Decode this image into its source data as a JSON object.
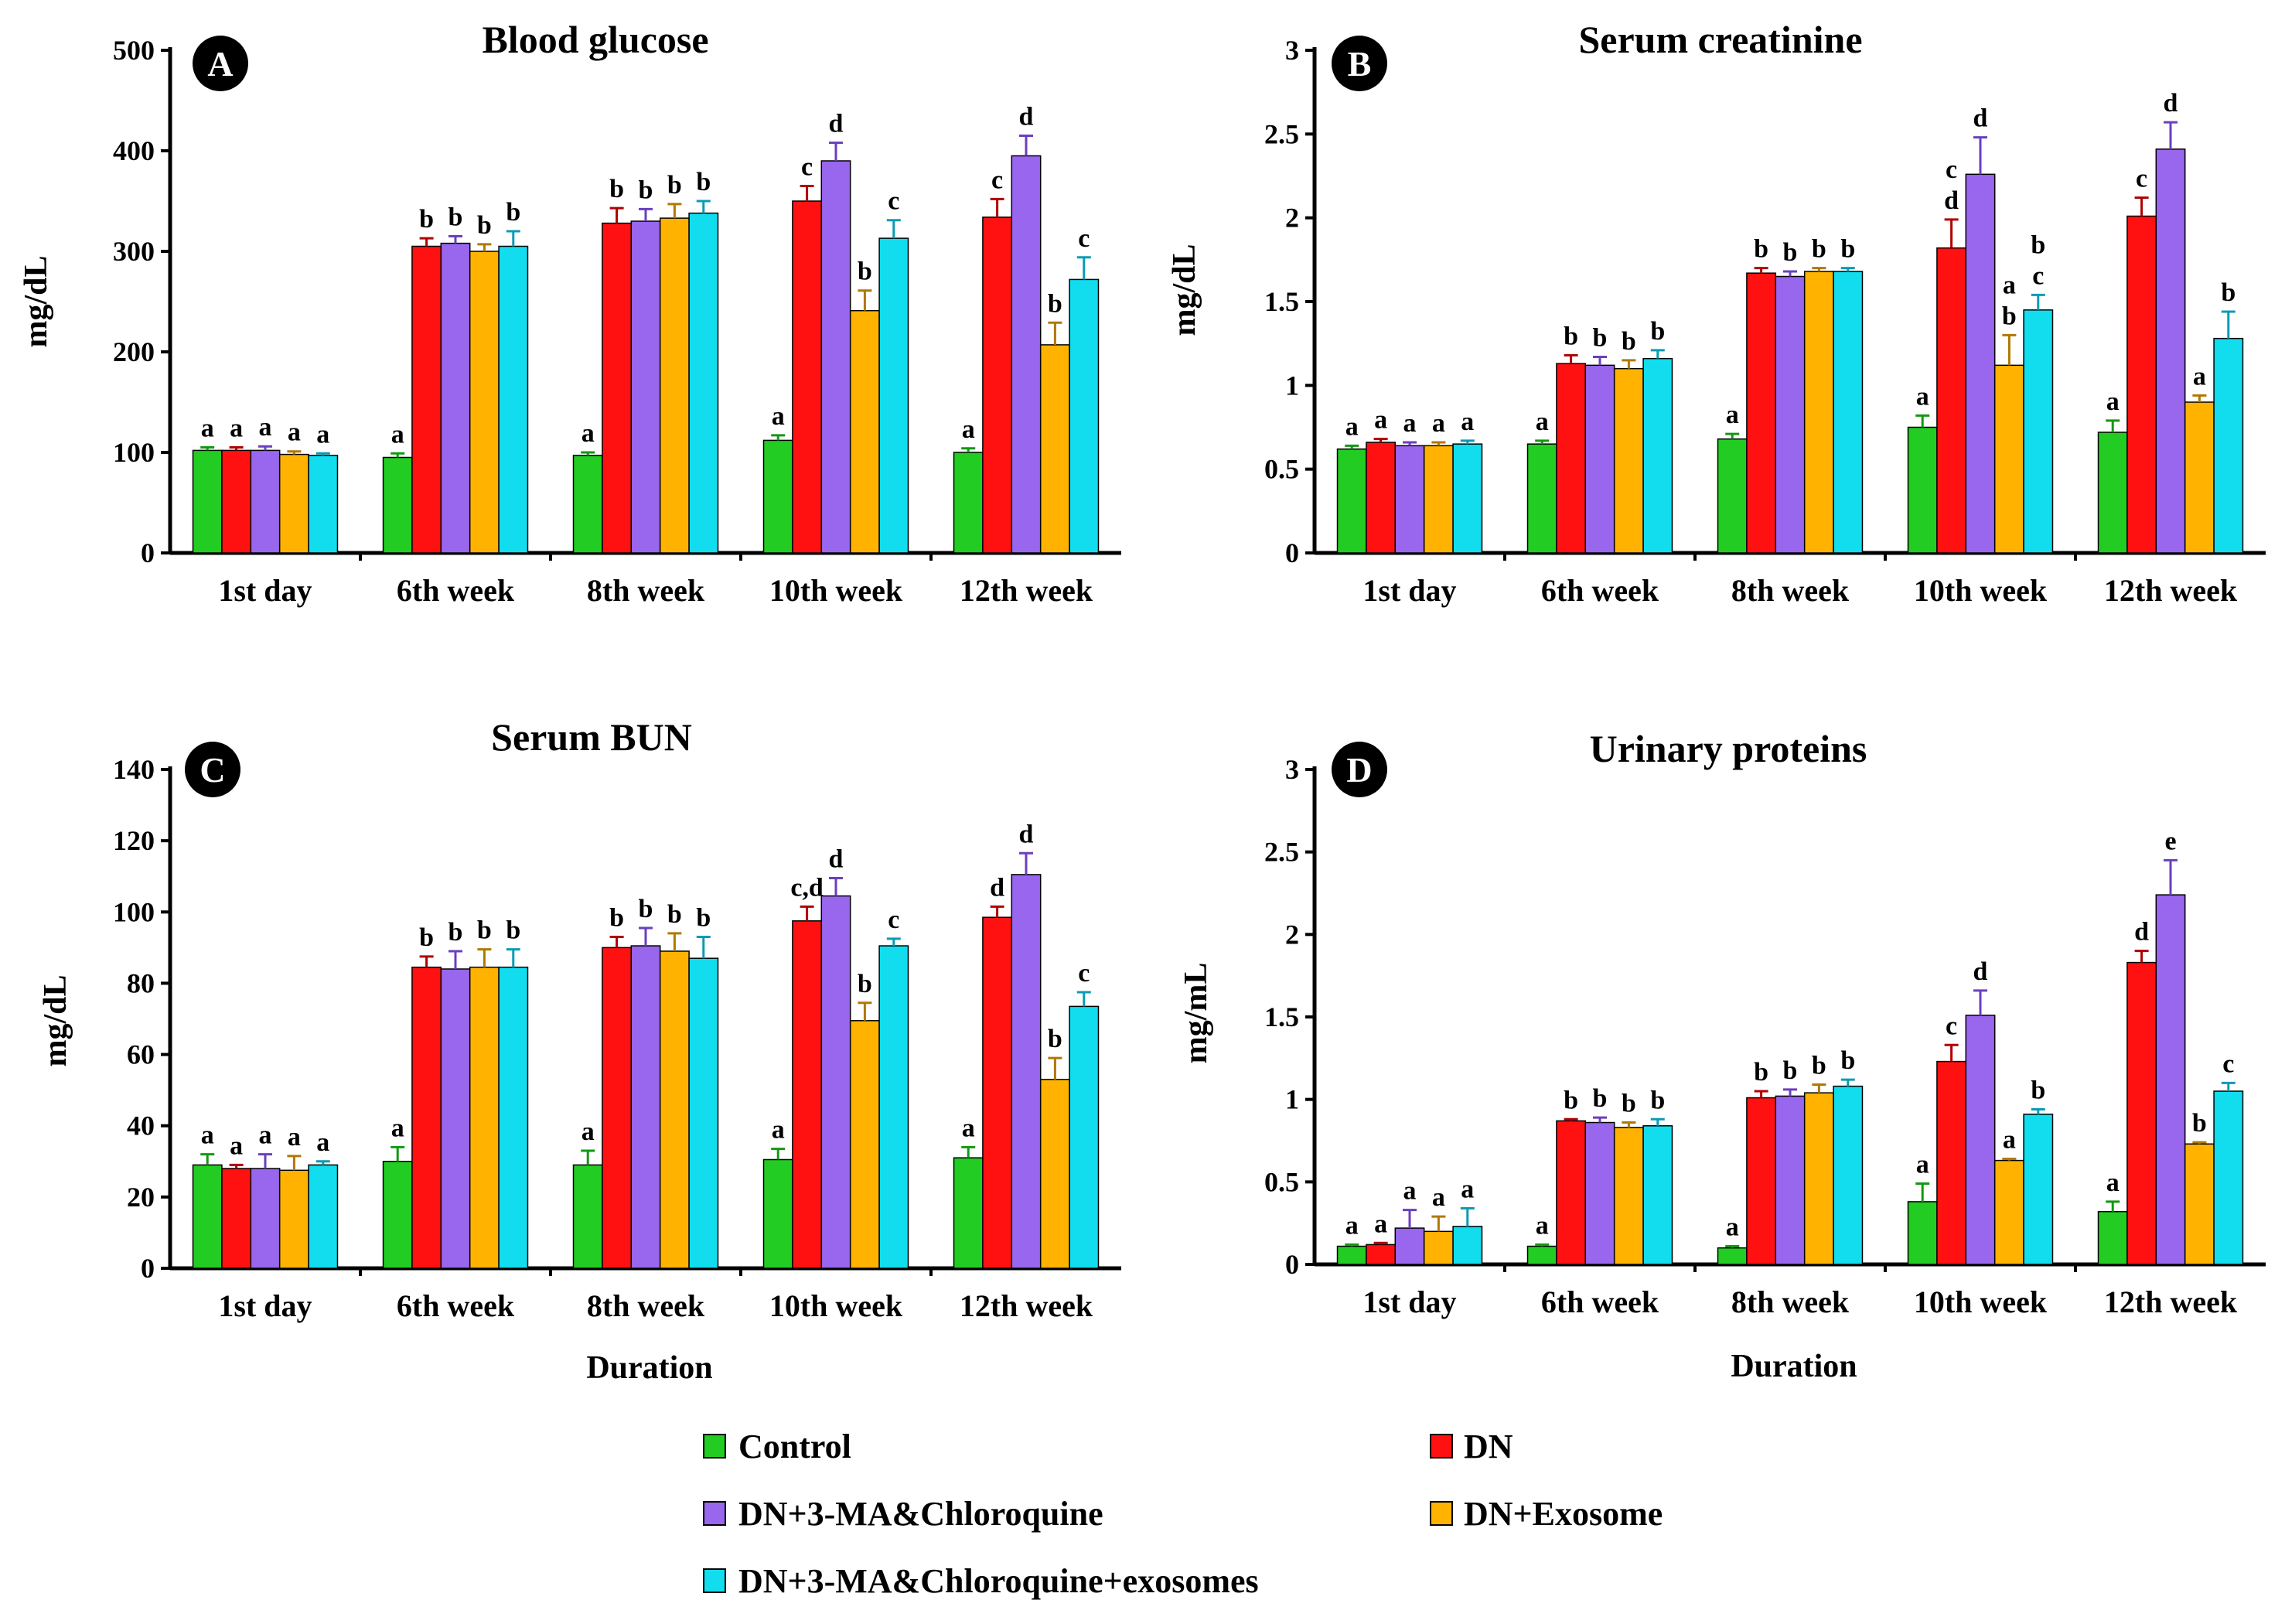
{
  "legend": [
    {
      "name": "Control",
      "color": "#22cc22"
    },
    {
      "name": "DN",
      "color": "#ff1111"
    },
    {
      "name": "DN+3-MA&Chloroquine",
      "color": "#9966ee"
    },
    {
      "name": "DN+Exosome",
      "color": "#ffb300"
    },
    {
      "name": "DN+3-MA&Chloroquine+exosomes",
      "color": "#11ddee"
    }
  ],
  "chart_data": [
    {
      "type": "bar",
      "panel": "A",
      "title": "Blood glucose",
      "ylabel": "mg/dL",
      "xlabel": "",
      "ylim": [
        0,
        500
      ],
      "yticks": [
        "0",
        "100",
        "200",
        "300",
        "400",
        "500"
      ],
      "categories": [
        "1st day",
        "6th week",
        "8th week",
        "10th week",
        "12th week"
      ],
      "series": [
        {
          "name": "Control",
          "values": [
            102,
            95,
            97,
            112,
            100
          ],
          "errors": [
            3,
            4,
            3,
            5,
            4
          ],
          "labels": [
            "a",
            "a",
            "a",
            "a",
            "a"
          ]
        },
        {
          "name": "DN",
          "values": [
            102,
            305,
            328,
            350,
            334
          ],
          "errors": [
            3,
            8,
            15,
            15,
            18
          ],
          "labels": [
            "a",
            "b",
            "b",
            "c",
            "c"
          ]
        },
        {
          "name": "DN+3-MA&Chloroquine",
          "values": [
            102,
            308,
            330,
            390,
            395
          ],
          "errors": [
            4,
            7,
            12,
            18,
            20
          ],
          "labels": [
            "a",
            "b",
            "b",
            "d",
            "d"
          ]
        },
        {
          "name": "DN+Exosome",
          "values": [
            98,
            300,
            333,
            241,
            207
          ],
          "errors": [
            3,
            7,
            14,
            20,
            22
          ],
          "labels": [
            "a",
            "b",
            "b",
            "b",
            "b"
          ]
        },
        {
          "name": "DN+3-MA&Chloroquine+exosomes",
          "values": [
            97,
            305,
            338,
            313,
            272
          ],
          "errors": [
            2,
            15,
            12,
            18,
            22
          ],
          "labels": [
            "a",
            "b",
            "b",
            "c",
            "c"
          ]
        }
      ]
    },
    {
      "type": "bar",
      "panel": "B",
      "title": "Serum creatinine",
      "ylabel": "mg/dL",
      "xlabel": "",
      "ylim": [
        0,
        3
      ],
      "yticks": [
        "0",
        "0.5",
        "1",
        "1.5",
        "2",
        "2.5",
        "3"
      ],
      "categories": [
        "1st day",
        "6th week",
        "8th week",
        "10th week",
        "12th week"
      ],
      "series": [
        {
          "name": "Control",
          "values": [
            0.62,
            0.65,
            0.68,
            0.75,
            0.72
          ],
          "errors": [
            0.02,
            0.02,
            0.03,
            0.07,
            0.07
          ],
          "labels": [
            "a",
            "a",
            "a",
            "a",
            "a"
          ]
        },
        {
          "name": "DN",
          "values": [
            0.66,
            1.13,
            1.67,
            1.82,
            2.01
          ],
          "errors": [
            0.02,
            0.05,
            0.03,
            0.17,
            0.11
          ],
          "labels": [
            "a",
            "b",
            "b",
            "c\nd",
            "c"
          ]
        },
        {
          "name": "DN+3-MA&Chloroquine",
          "values": [
            0.64,
            1.12,
            1.65,
            2.26,
            2.41
          ],
          "errors": [
            0.02,
            0.05,
            0.03,
            0.22,
            0.16
          ],
          "labels": [
            "a",
            "b",
            "b",
            "d",
            "d"
          ]
        },
        {
          "name": "DN+Exosome",
          "values": [
            0.64,
            1.1,
            1.68,
            1.12,
            0.9
          ],
          "errors": [
            0.02,
            0.05,
            0.02,
            0.18,
            0.04
          ],
          "labels": [
            "a",
            "b",
            "b",
            "a\nb",
            "a"
          ]
        },
        {
          "name": "DN+3-MA&Chloroquine+exosomes",
          "values": [
            0.65,
            1.16,
            1.68,
            1.45,
            1.28
          ],
          "errors": [
            0.02,
            0.05,
            0.02,
            0.09,
            0.16
          ],
          "labels": [
            "a",
            "b",
            "b",
            "b\nc",
            "b"
          ]
        }
      ]
    },
    {
      "type": "bar",
      "panel": "C",
      "title": "Serum BUN",
      "ylabel": "mg/dL",
      "xlabel": "Duration",
      "ylim": [
        0,
        140
      ],
      "yticks": [
        "0",
        "20",
        "40",
        "60",
        "80",
        "100",
        "120",
        "140"
      ],
      "categories": [
        "1st day",
        "6th week",
        "8th week",
        "10th week",
        "12th week"
      ],
      "series": [
        {
          "name": "Control",
          "values": [
            29,
            30,
            29,
            30.5,
            31
          ],
          "errors": [
            3,
            4,
            4,
            3,
            3
          ],
          "labels": [
            "a",
            "a",
            "a",
            "a",
            "a"
          ]
        },
        {
          "name": "DN",
          "values": [
            28,
            84.5,
            90,
            97.5,
            98.5
          ],
          "errors": [
            1,
            3,
            3,
            4,
            3
          ],
          "labels": [
            "a",
            "b",
            "b",
            "c,d",
            "d"
          ]
        },
        {
          "name": "DN+3-MA&Chloroquine",
          "values": [
            28,
            84,
            90.5,
            104.5,
            110.5
          ],
          "errors": [
            4,
            5,
            5,
            5,
            6
          ],
          "labels": [
            "a",
            "b",
            "b",
            "d",
            "d"
          ]
        },
        {
          "name": "DN+Exosome",
          "values": [
            27.5,
            84.5,
            89,
            69.5,
            53
          ],
          "errors": [
            4,
            5,
            5,
            5,
            6
          ],
          "labels": [
            "a",
            "b",
            "b",
            "b",
            "b"
          ]
        },
        {
          "name": "DN+3-MA&Chloroquine+exosomes",
          "values": [
            29,
            84.5,
            87,
            90.5,
            73.5
          ],
          "errors": [
            1,
            5,
            6,
            2,
            4
          ],
          "labels": [
            "a",
            "b",
            "b",
            "c",
            "c"
          ]
        }
      ]
    },
    {
      "type": "bar",
      "panel": "D",
      "title": "Urinary proteins",
      "ylabel": "mg/mL",
      "xlabel": "Duration",
      "ylim": [
        0,
        3
      ],
      "yticks": [
        "0",
        "0.5",
        "1",
        "1.5",
        "2",
        "2.5",
        "3"
      ],
      "categories": [
        "1st day",
        "6th week",
        "8th week",
        "10th week",
        "12th week"
      ],
      "series": [
        {
          "name": "Control",
          "values": [
            0.11,
            0.11,
            0.1,
            0.38,
            0.32
          ],
          "errors": [
            0.01,
            0.01,
            0.01,
            0.11,
            0.06
          ],
          "labels": [
            "a",
            "a",
            "a",
            "a",
            "a"
          ]
        },
        {
          "name": "DN",
          "values": [
            0.12,
            0.87,
            1.01,
            1.23,
            1.83
          ],
          "errors": [
            0.01,
            0.01,
            0.04,
            0.1,
            0.07
          ],
          "labels": [
            "a",
            "b",
            "b",
            "c",
            "d"
          ]
        },
        {
          "name": "DN+3-MA&Chloroquine",
          "values": [
            0.22,
            0.86,
            1.02,
            1.51,
            2.24
          ],
          "errors": [
            0.11,
            0.03,
            0.04,
            0.15,
            0.21
          ],
          "labels": [
            "a",
            "b",
            "b",
            "d",
            "e"
          ]
        },
        {
          "name": "DN+Exosome",
          "values": [
            0.2,
            0.83,
            1.04,
            0.63,
            0.73
          ],
          "errors": [
            0.09,
            0.03,
            0.05,
            0.01,
            0.01
          ],
          "labels": [
            "a",
            "b",
            "b",
            "a",
            "b"
          ]
        },
        {
          "name": "DN+3-MA&Chloroquine+exosomes",
          "values": [
            0.23,
            0.84,
            1.08,
            0.91,
            1.05
          ],
          "errors": [
            0.11,
            0.04,
            0.04,
            0.03,
            0.05
          ],
          "labels": [
            "a",
            "b",
            "b",
            "b",
            "c"
          ]
        }
      ]
    }
  ]
}
